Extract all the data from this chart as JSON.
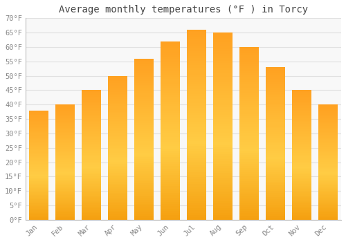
{
  "title": "Average monthly temperatures (°F ) in Torcy",
  "months": [
    "Jan",
    "Feb",
    "Mar",
    "Apr",
    "May",
    "Jun",
    "Jul",
    "Aug",
    "Sep",
    "Oct",
    "Nov",
    "Dec"
  ],
  "values": [
    38,
    40,
    45,
    50,
    56,
    62,
    66,
    65,
    60,
    53,
    45,
    40
  ],
  "bar_color_bottom": "#F5A623",
  "bar_color_mid": "#FFCC44",
  "bar_color_top": "#FFA520",
  "ylim": [
    0,
    70
  ],
  "yticks": [
    0,
    5,
    10,
    15,
    20,
    25,
    30,
    35,
    40,
    45,
    50,
    55,
    60,
    65,
    70
  ],
  "ytick_labels": [
    "0°F",
    "5°F",
    "10°F",
    "15°F",
    "20°F",
    "25°F",
    "30°F",
    "35°F",
    "40°F",
    "45°F",
    "50°F",
    "55°F",
    "60°F",
    "65°F",
    "70°F"
  ],
  "background_color": "#ffffff",
  "plot_bg_color": "#f8f8f8",
  "grid_color": "#e0e0e0",
  "title_fontsize": 10,
  "tick_fontsize": 7.5,
  "font_family": "monospace",
  "bar_width": 0.72
}
